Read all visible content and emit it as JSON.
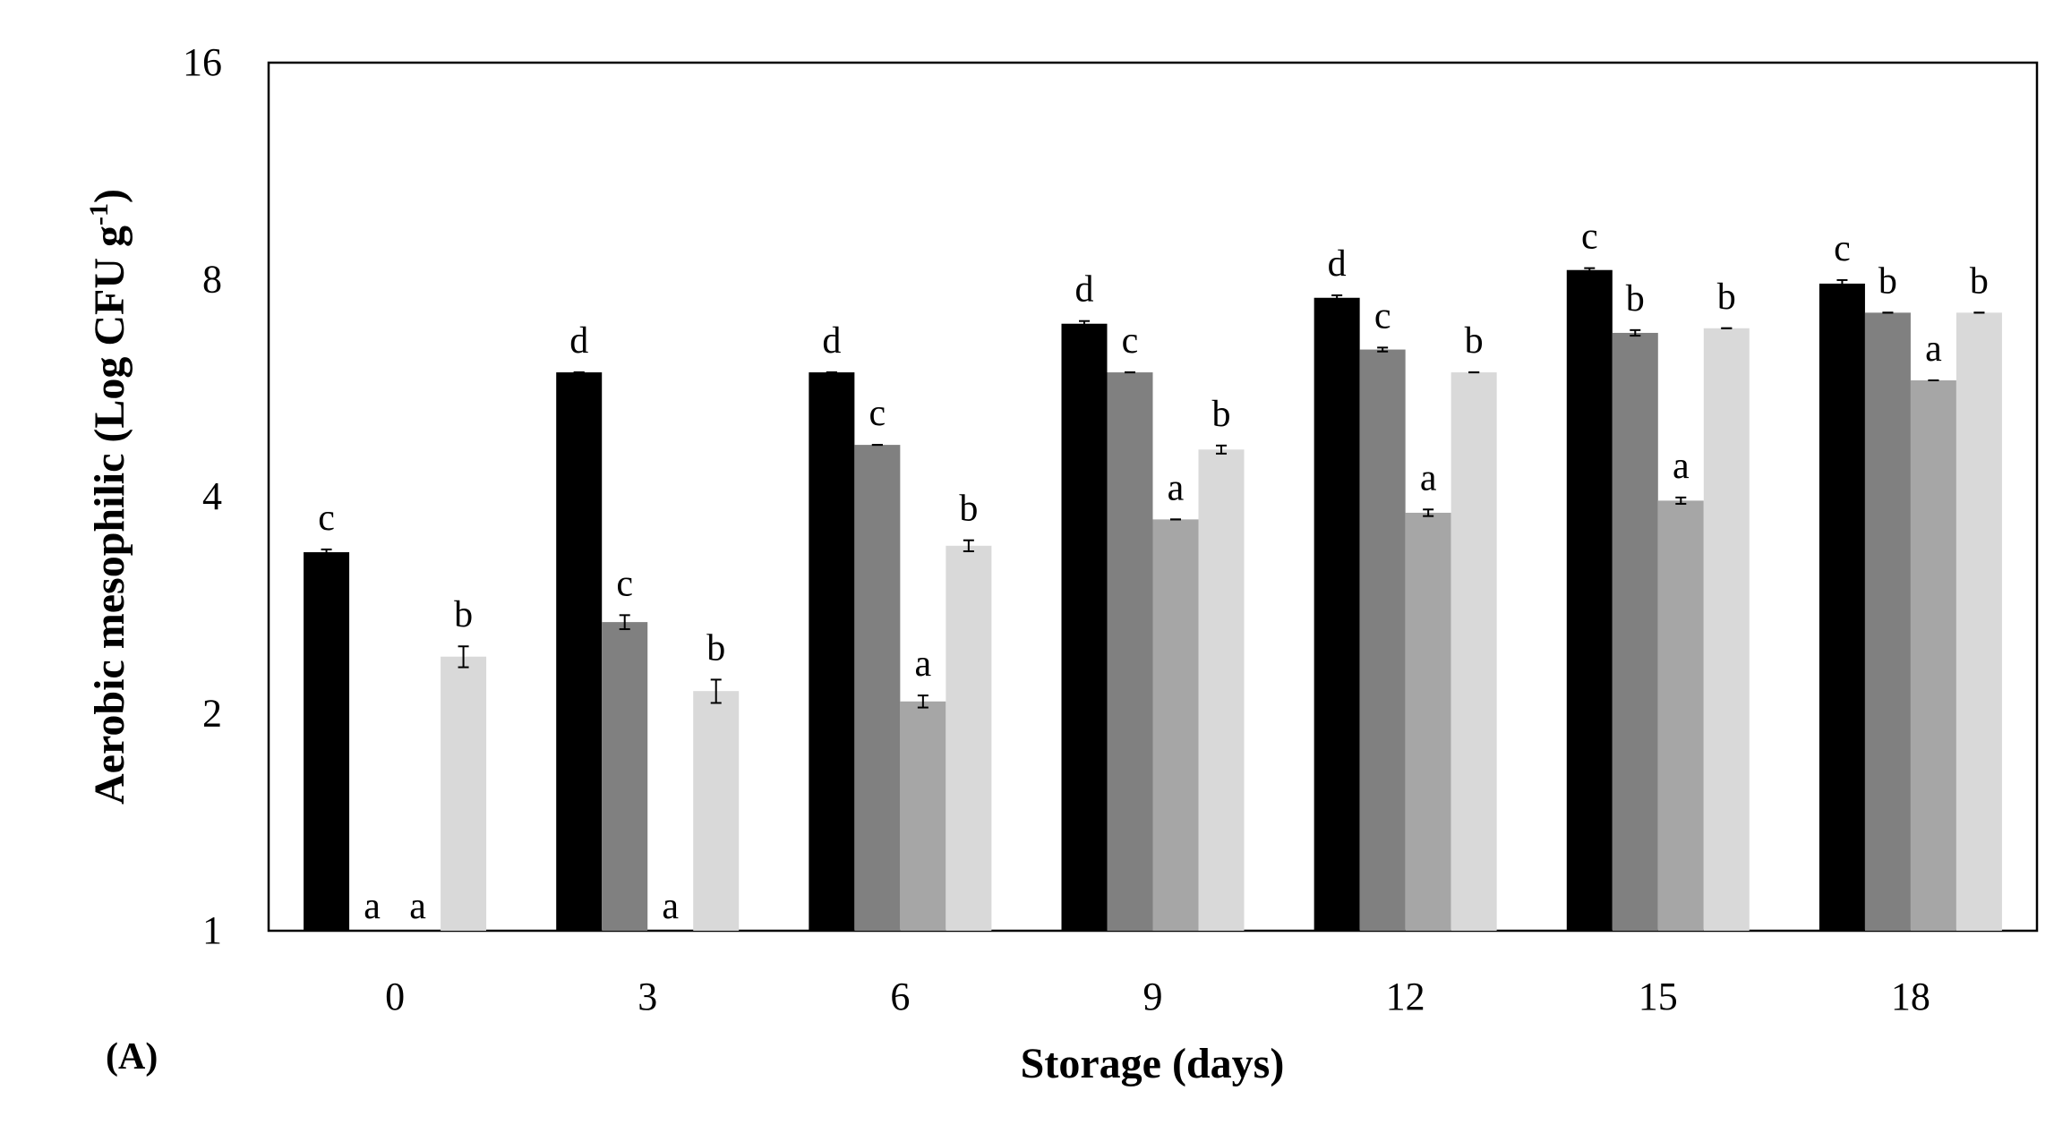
{
  "chart_data": {
    "type": "bar",
    "panel_label": "(A)",
    "xlabel": "Storage (days)",
    "ylabel_main": "Aerobic mesophilic (Log CFU g",
    "ylabel_sup": "-1",
    "ylabel_close": ")",
    "y_scale": "log2",
    "ylim": [
      1,
      16
    ],
    "y_ticks": [
      1,
      2,
      4,
      8,
      16
    ],
    "y_tick_labels": [
      "1",
      "2",
      "4",
      "8",
      "16"
    ],
    "grid": false,
    "legend": "none",
    "categories": [
      "0",
      "3",
      "6",
      "9",
      "12",
      "15",
      "18"
    ],
    "series": [
      {
        "color": "#000000",
        "values": [
          3.35,
          5.95,
          5.95,
          6.95,
          7.55,
          8.25,
          7.9
        ],
        "errors": [
          0.03,
          0.0,
          0.0,
          0.06,
          0.06,
          0.05,
          0.09
        ],
        "letters": [
          "c",
          "d",
          "d",
          "d",
          "d",
          "c",
          "c"
        ]
      },
      {
        "color": "#808080",
        "values": [
          null,
          2.68,
          4.72,
          5.95,
          6.4,
          6.75,
          7.2
        ],
        "errors": [
          null,
          0.06,
          0.0,
          0.0,
          0.04,
          0.06,
          0.0
        ],
        "letters": [
          "a",
          "c",
          "c",
          "c",
          "c",
          "b",
          "b"
        ]
      },
      {
        "color": "#a6a6a6",
        "values": [
          null,
          null,
          2.08,
          3.72,
          3.8,
          3.95,
          5.8
        ],
        "errors": [
          null,
          null,
          0.04,
          0.0,
          0.04,
          0.04,
          0.0
        ],
        "letters": [
          "a",
          "a",
          "a",
          "a",
          "a",
          "a",
          "a"
        ]
      },
      {
        "color": "#d9d9d9",
        "values": [
          2.4,
          2.15,
          3.42,
          4.65,
          5.95,
          6.85,
          7.2
        ],
        "errors": [
          0.08,
          0.08,
          0.06,
          0.06,
          0.0,
          0.0,
          0.0
        ],
        "letters": [
          "b",
          "b",
          "b",
          "b",
          "b",
          "b",
          "b"
        ]
      }
    ]
  }
}
